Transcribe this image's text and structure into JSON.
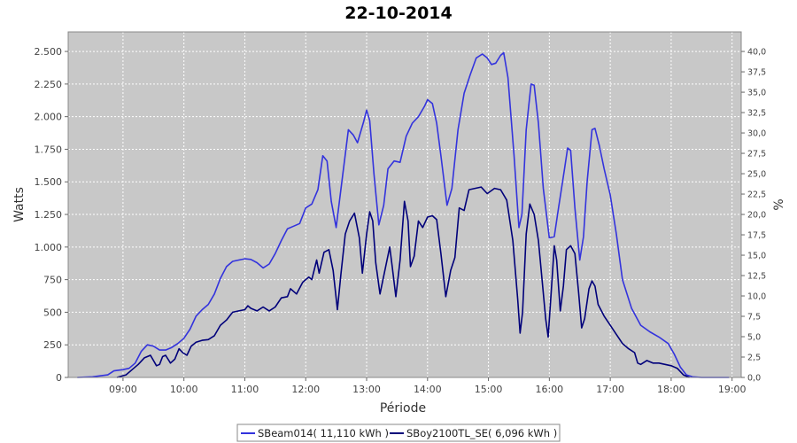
{
  "chart_data": {
    "type": "line",
    "title": "22-10-2014",
    "xlabel": "Période",
    "ylabel": "Watts",
    "y2label": "%",
    "xlim": [
      8.1,
      19.15
    ],
    "ylim": [
      0,
      2650
    ],
    "y2lim": [
      0,
      42.4
    ],
    "x_ticks": [
      {
        "value": 9,
        "label": "09:00"
      },
      {
        "value": 10,
        "label": "10:00"
      },
      {
        "value": 11,
        "label": "11:00"
      },
      {
        "value": 12,
        "label": "12:00"
      },
      {
        "value": 13,
        "label": "13:00"
      },
      {
        "value": 14,
        "label": "14:00"
      },
      {
        "value": 15,
        "label": "15:00"
      },
      {
        "value": 16,
        "label": "16:00"
      },
      {
        "value": 17,
        "label": "17:00"
      },
      {
        "value": 18,
        "label": "18:00"
      },
      {
        "value": 19,
        "label": "19:00"
      }
    ],
    "y_ticks": [
      {
        "value": 0,
        "label": "0"
      },
      {
        "value": 250,
        "label": "250"
      },
      {
        "value": 500,
        "label": "500"
      },
      {
        "value": 750,
        "label": "750"
      },
      {
        "value": 1000,
        "label": "1.000"
      },
      {
        "value": 1250,
        "label": "1.250"
      },
      {
        "value": 1500,
        "label": "1.500"
      },
      {
        "value": 1750,
        "label": "1.750"
      },
      {
        "value": 2000,
        "label": "2.000"
      },
      {
        "value": 2250,
        "label": "2.250"
      },
      {
        "value": 2500,
        "label": "2.500"
      }
    ],
    "y2_ticks": [
      {
        "value": 0,
        "label": "0,0"
      },
      {
        "value": 2.5,
        "label": "2,5"
      },
      {
        "value": 5,
        "label": "5,0"
      },
      {
        "value": 7.5,
        "label": "7,5"
      },
      {
        "value": 10,
        "label": "10,0"
      },
      {
        "value": 12.5,
        "label": "12,5"
      },
      {
        "value": 15,
        "label": "15,0"
      },
      {
        "value": 17.5,
        "label": "17,5"
      },
      {
        "value": 20,
        "label": "20,0"
      },
      {
        "value": 22.5,
        "label": "22,5"
      },
      {
        "value": 25,
        "label": "25,0"
      },
      {
        "value": 27.5,
        "label": "27,5"
      },
      {
        "value": 30,
        "label": "30,0"
      },
      {
        "value": 32.5,
        "label": "32,5"
      },
      {
        "value": 35,
        "label": "35,0"
      },
      {
        "value": 37.5,
        "label": "37,5"
      },
      {
        "value": 40,
        "label": "40,0"
      }
    ],
    "grid": true,
    "legend_position": "bottom-center",
    "plot_background": "#c8c8c8",
    "series": [
      {
        "name": "SBeam014( 11,110 kWh )",
        "color": "#3333dd",
        "points": [
          [
            8.25,
            0
          ],
          [
            8.5,
            5
          ],
          [
            8.75,
            20
          ],
          [
            8.85,
            50
          ],
          [
            9.0,
            60
          ],
          [
            9.1,
            70
          ],
          [
            9.2,
            110
          ],
          [
            9.3,
            200
          ],
          [
            9.4,
            250
          ],
          [
            9.5,
            240
          ],
          [
            9.6,
            210
          ],
          [
            9.7,
            210
          ],
          [
            9.8,
            230
          ],
          [
            9.9,
            260
          ],
          [
            10.0,
            300
          ],
          [
            10.1,
            370
          ],
          [
            10.2,
            470
          ],
          [
            10.3,
            520
          ],
          [
            10.4,
            560
          ],
          [
            10.5,
            640
          ],
          [
            10.6,
            760
          ],
          [
            10.7,
            850
          ],
          [
            10.8,
            890
          ],
          [
            10.9,
            900
          ],
          [
            11.0,
            910
          ],
          [
            11.1,
            905
          ],
          [
            11.2,
            880
          ],
          [
            11.3,
            840
          ],
          [
            11.4,
            870
          ],
          [
            11.5,
            950
          ],
          [
            11.6,
            1050
          ],
          [
            11.7,
            1140
          ],
          [
            11.8,
            1160
          ],
          [
            11.9,
            1180
          ],
          [
            12.0,
            1300
          ],
          [
            12.1,
            1330
          ],
          [
            12.2,
            1440
          ],
          [
            12.28,
            1700
          ],
          [
            12.35,
            1660
          ],
          [
            12.42,
            1350
          ],
          [
            12.5,
            1150
          ],
          [
            12.58,
            1450
          ],
          [
            12.7,
            1900
          ],
          [
            12.78,
            1860
          ],
          [
            12.85,
            1800
          ],
          [
            12.95,
            1960
          ],
          [
            13.0,
            2050
          ],
          [
            13.05,
            1970
          ],
          [
            13.12,
            1560
          ],
          [
            13.2,
            1170
          ],
          [
            13.28,
            1320
          ],
          [
            13.35,
            1600
          ],
          [
            13.45,
            1660
          ],
          [
            13.55,
            1650
          ],
          [
            13.65,
            1850
          ],
          [
            13.75,
            1950
          ],
          [
            13.85,
            2000
          ],
          [
            13.95,
            2080
          ],
          [
            14.0,
            2130
          ],
          [
            14.08,
            2100
          ],
          [
            14.15,
            1950
          ],
          [
            14.22,
            1700
          ],
          [
            14.32,
            1320
          ],
          [
            14.4,
            1450
          ],
          [
            14.5,
            1900
          ],
          [
            14.6,
            2180
          ],
          [
            14.7,
            2320
          ],
          [
            14.8,
            2450
          ],
          [
            14.9,
            2480
          ],
          [
            14.98,
            2450
          ],
          [
            15.05,
            2400
          ],
          [
            15.12,
            2410
          ],
          [
            15.2,
            2470
          ],
          [
            15.25,
            2490
          ],
          [
            15.32,
            2300
          ],
          [
            15.42,
            1700
          ],
          [
            15.5,
            1150
          ],
          [
            15.55,
            1250
          ],
          [
            15.62,
            1900
          ],
          [
            15.7,
            2250
          ],
          [
            15.75,
            2240
          ],
          [
            15.82,
            1950
          ],
          [
            15.9,
            1450
          ],
          [
            16.0,
            1070
          ],
          [
            16.08,
            1080
          ],
          [
            16.15,
            1300
          ],
          [
            16.25,
            1600
          ],
          [
            16.3,
            1760
          ],
          [
            16.35,
            1740
          ],
          [
            16.42,
            1300
          ],
          [
            16.5,
            900
          ],
          [
            16.56,
            1080
          ],
          [
            16.62,
            1500
          ],
          [
            16.7,
            1900
          ],
          [
            16.75,
            1910
          ],
          [
            16.82,
            1780
          ],
          [
            16.9,
            1600
          ],
          [
            17.0,
            1400
          ],
          [
            17.1,
            1100
          ],
          [
            17.2,
            750
          ],
          [
            17.35,
            530
          ],
          [
            17.5,
            400
          ],
          [
            17.65,
            350
          ],
          [
            17.8,
            310
          ],
          [
            17.95,
            260
          ],
          [
            18.05,
            180
          ],
          [
            18.15,
            80
          ],
          [
            18.25,
            20
          ],
          [
            18.35,
            5
          ],
          [
            18.5,
            0
          ],
          [
            18.95,
            0
          ]
        ]
      },
      {
        "name": "SBoy2100TL_SE( 6,096 kWh )",
        "color": "#00007a",
        "points": [
          [
            8.9,
            0
          ],
          [
            9.05,
            20
          ],
          [
            9.15,
            60
          ],
          [
            9.25,
            100
          ],
          [
            9.35,
            150
          ],
          [
            9.45,
            170
          ],
          [
            9.5,
            130
          ],
          [
            9.55,
            90
          ],
          [
            9.6,
            100
          ],
          [
            9.65,
            160
          ],
          [
            9.7,
            170
          ],
          [
            9.78,
            110
          ],
          [
            9.85,
            140
          ],
          [
            9.92,
            220
          ],
          [
            9.98,
            190
          ],
          [
            10.05,
            170
          ],
          [
            10.12,
            240
          ],
          [
            10.2,
            270
          ],
          [
            10.3,
            285
          ],
          [
            10.4,
            290
          ],
          [
            10.5,
            320
          ],
          [
            10.6,
            400
          ],
          [
            10.7,
            440
          ],
          [
            10.8,
            500
          ],
          [
            10.9,
            510
          ],
          [
            11.0,
            520
          ],
          [
            11.05,
            550
          ],
          [
            11.1,
            530
          ],
          [
            11.2,
            510
          ],
          [
            11.3,
            540
          ],
          [
            11.4,
            510
          ],
          [
            11.5,
            540
          ],
          [
            11.6,
            610
          ],
          [
            11.7,
            620
          ],
          [
            11.75,
            680
          ],
          [
            11.85,
            640
          ],
          [
            11.95,
            730
          ],
          [
            12.05,
            770
          ],
          [
            12.1,
            750
          ],
          [
            12.18,
            900
          ],
          [
            12.22,
            800
          ],
          [
            12.3,
            960
          ],
          [
            12.38,
            980
          ],
          [
            12.45,
            820
          ],
          [
            12.52,
            520
          ],
          [
            12.58,
            800
          ],
          [
            12.65,
            1100
          ],
          [
            12.72,
            1200
          ],
          [
            12.8,
            1260
          ],
          [
            12.88,
            1070
          ],
          [
            12.93,
            800
          ],
          [
            13.0,
            1100
          ],
          [
            13.05,
            1270
          ],
          [
            13.1,
            1200
          ],
          [
            13.15,
            880
          ],
          [
            13.22,
            640
          ],
          [
            13.3,
            820
          ],
          [
            13.38,
            1000
          ],
          [
            13.42,
            850
          ],
          [
            13.48,
            620
          ],
          [
            13.55,
            900
          ],
          [
            13.62,
            1350
          ],
          [
            13.68,
            1200
          ],
          [
            13.72,
            850
          ],
          [
            13.78,
            930
          ],
          [
            13.85,
            1200
          ],
          [
            13.92,
            1150
          ],
          [
            14.0,
            1230
          ],
          [
            14.08,
            1240
          ],
          [
            14.15,
            1210
          ],
          [
            14.22,
            950
          ],
          [
            14.3,
            620
          ],
          [
            14.38,
            820
          ],
          [
            14.45,
            920
          ],
          [
            14.52,
            1300
          ],
          [
            14.6,
            1280
          ],
          [
            14.68,
            1440
          ],
          [
            14.78,
            1450
          ],
          [
            14.88,
            1460
          ],
          [
            14.98,
            1410
          ],
          [
            15.1,
            1450
          ],
          [
            15.2,
            1440
          ],
          [
            15.3,
            1360
          ],
          [
            15.4,
            1050
          ],
          [
            15.48,
            600
          ],
          [
            15.52,
            340
          ],
          [
            15.56,
            500
          ],
          [
            15.62,
            1100
          ],
          [
            15.68,
            1330
          ],
          [
            15.75,
            1250
          ],
          [
            15.82,
            1050
          ],
          [
            15.88,
            750
          ],
          [
            15.94,
            450
          ],
          [
            15.98,
            310
          ],
          [
            16.03,
            650
          ],
          [
            16.08,
            1010
          ],
          [
            16.12,
            900
          ],
          [
            16.18,
            510
          ],
          [
            16.23,
            700
          ],
          [
            16.28,
            980
          ],
          [
            16.35,
            1010
          ],
          [
            16.42,
            950
          ],
          [
            16.48,
            650
          ],
          [
            16.53,
            380
          ],
          [
            16.58,
            450
          ],
          [
            16.65,
            680
          ],
          [
            16.7,
            740
          ],
          [
            16.75,
            700
          ],
          [
            16.8,
            560
          ],
          [
            16.9,
            470
          ],
          [
            17.0,
            400
          ],
          [
            17.1,
            330
          ],
          [
            17.2,
            260
          ],
          [
            17.3,
            220
          ],
          [
            17.4,
            190
          ],
          [
            17.45,
            110
          ],
          [
            17.5,
            100
          ],
          [
            17.6,
            130
          ],
          [
            17.7,
            110
          ],
          [
            17.8,
            110
          ],
          [
            17.9,
            100
          ],
          [
            18.0,
            90
          ],
          [
            18.1,
            70
          ],
          [
            18.2,
            20
          ],
          [
            18.3,
            0
          ]
        ]
      }
    ]
  }
}
